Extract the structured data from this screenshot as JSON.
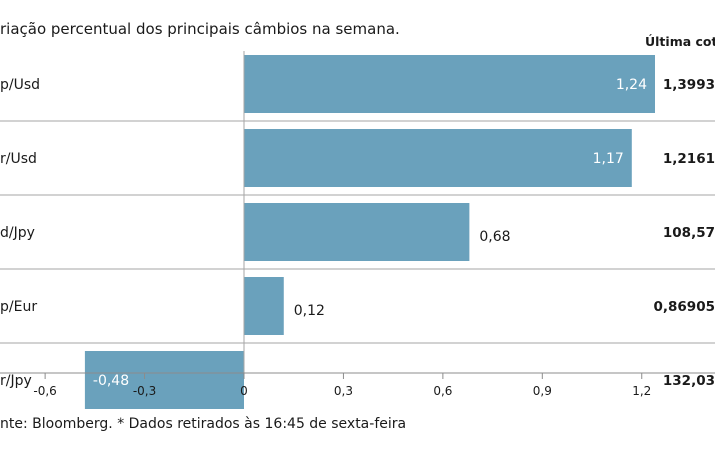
{
  "chart_data": {
    "type": "bar",
    "orientation": "horizontal",
    "title": "riação percentual dos principais câmbios na semana.",
    "quote_header": "Última cotaç",
    "footer": "nte: Bloomberg.  * Dados retirados às 16:45 de sexta-feira",
    "categories": [
      "p/Usd",
      "r/Usd",
      "d/Jpy",
      "p/Eur",
      "r/Jpy"
    ],
    "values": [
      1.24,
      1.17,
      0.68,
      0.12,
      -0.48
    ],
    "value_labels": [
      "1,24",
      "1,17",
      "0,68",
      "0,12",
      "-0,48"
    ],
    "last_quotes": [
      "1,3993",
      "1,2161",
      "108,57",
      "0,86905",
      "132,03"
    ],
    "x_ticks": [
      -0.6,
      -0.3,
      0,
      0.3,
      0.6,
      0.9,
      1.2
    ],
    "x_tick_labels": [
      "-0,6",
      "-0,3",
      "0",
      "0,3",
      "0,6",
      "0,9",
      "1,2"
    ],
    "xlim": [
      -0.6,
      1.24
    ],
    "colors": {
      "bar": "#6aa1bc",
      "separator": "#a6a6a6",
      "axis": "#8c8c8c",
      "text": "#1a1a1a",
      "bar_label_inside": "#ffffff"
    }
  }
}
